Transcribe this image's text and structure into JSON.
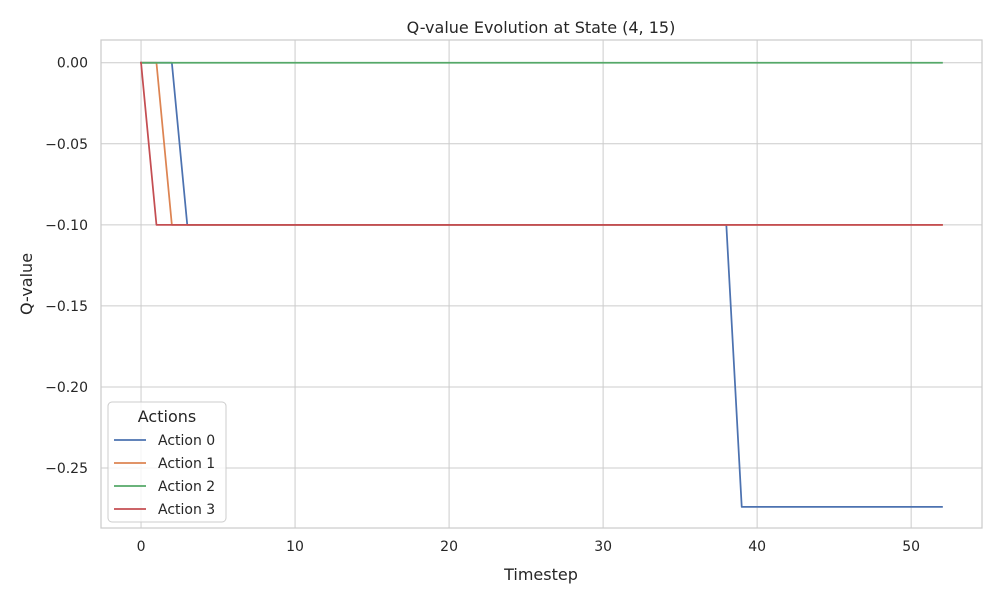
{
  "chart_data": {
    "type": "line",
    "title": "Q-value Evolution at State (4, 15)",
    "xlabel": "Timestep",
    "ylabel": "Q-value",
    "xlim": [
      -2.6,
      54.6
    ],
    "ylim": [
      -0.287,
      0.014
    ],
    "xticks": [
      0,
      10,
      20,
      30,
      40,
      50
    ],
    "xtick_labels": [
      "0",
      "10",
      "20",
      "30",
      "40",
      "50"
    ],
    "yticks": [
      0.0,
      -0.05,
      -0.1,
      -0.15,
      -0.2,
      -0.25
    ],
    "ytick_labels": [
      "0.00",
      "−0.05",
      "−0.10",
      "−0.15",
      "−0.20",
      "−0.25"
    ],
    "grid": true,
    "legend": {
      "title": "Actions",
      "placement": "lower-left"
    },
    "series": [
      {
        "name": "Action 0",
        "color": "#4c72b0",
        "points": [
          [
            0,
            0.0
          ],
          [
            2,
            0.0
          ],
          [
            3,
            -0.1
          ],
          [
            38,
            -0.1
          ],
          [
            39,
            -0.274
          ],
          [
            52,
            -0.274
          ]
        ]
      },
      {
        "name": "Action 1",
        "color": "#dd8452",
        "points": [
          [
            0,
            0.0
          ],
          [
            1,
            0.0
          ],
          [
            2,
            -0.1
          ],
          [
            52,
            -0.1
          ]
        ]
      },
      {
        "name": "Action 2",
        "color": "#55a868",
        "points": [
          [
            0,
            0.0
          ],
          [
            52,
            0.0
          ]
        ]
      },
      {
        "name": "Action 3",
        "color": "#c44e52",
        "points": [
          [
            0,
            0.0
          ],
          [
            1,
            -0.1
          ],
          [
            52,
            -0.1
          ]
        ]
      }
    ]
  }
}
